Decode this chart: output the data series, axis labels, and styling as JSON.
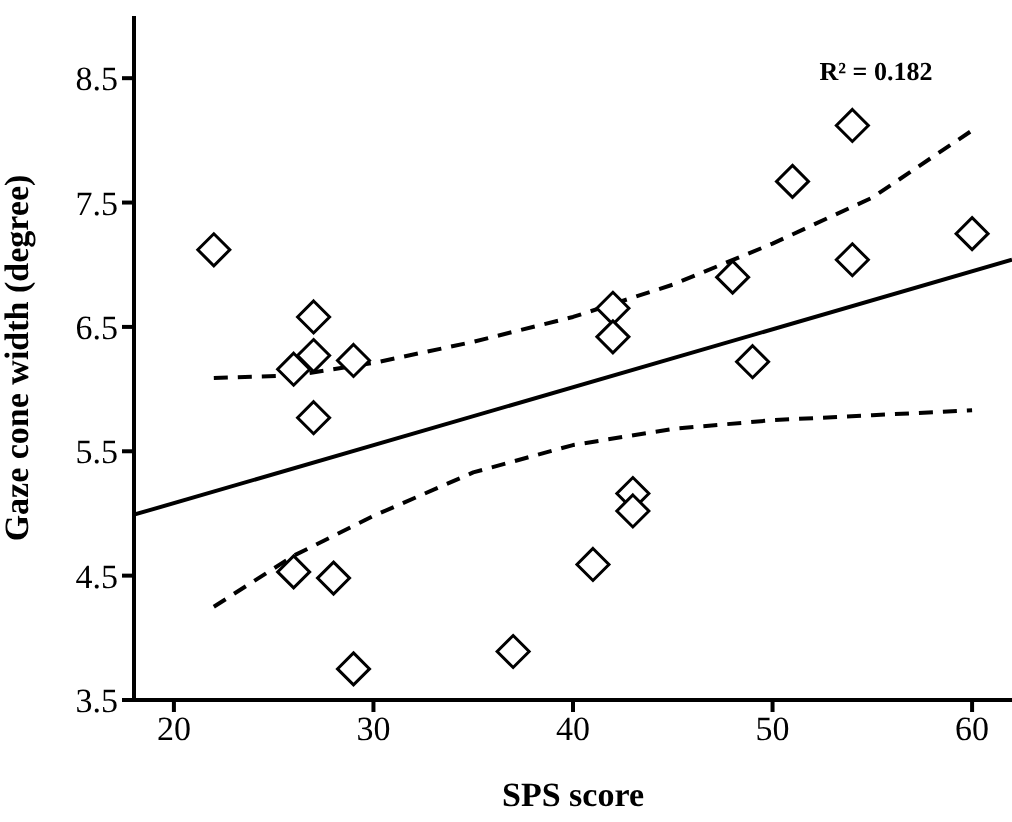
{
  "chart_data": {
    "type": "scatter",
    "xlabel": "SPS score",
    "ylabel": "Gaze cone width (degree)",
    "xlim": [
      18,
      62
    ],
    "ylim": [
      3.5,
      9.0
    ],
    "xticks": [
      20,
      30,
      40,
      50,
      60
    ],
    "yticks": [
      3.5,
      4.5,
      5.5,
      6.5,
      7.5,
      8.5
    ],
    "grid": false,
    "legend": false,
    "marker": "diamond",
    "annotations": [
      "R² = 0.182"
    ],
    "series": [
      {
        "color": "#000000",
        "x": [
          22,
          27,
          27,
          29,
          26,
          27,
          42,
          42,
          48,
          49,
          51,
          54,
          54,
          60,
          43,
          43,
          41,
          26,
          28,
          37,
          29
        ],
        "values": [
          7.12,
          6.58,
          6.27,
          6.23,
          6.16,
          5.77,
          6.65,
          6.42,
          6.9,
          6.22,
          7.67,
          8.12,
          7.04,
          7.25,
          5.16,
          5.02,
          4.59,
          4.53,
          4.48,
          3.89,
          3.75
        ]
      },
      {
        "type": "line",
        "color": "#000000",
        "line_style": "solid",
        "marker": "none",
        "x": [
          18,
          62
        ],
        "values": [
          4.99,
          7.04
        ]
      },
      {
        "type": "line",
        "color": "#000000",
        "line_style": "dashed",
        "marker": "none",
        "x": [
          22,
          26,
          30,
          35,
          40,
          45,
          50,
          55,
          60
        ],
        "values": [
          6.09,
          6.11,
          6.21,
          6.38,
          6.58,
          6.84,
          7.17,
          7.54,
          8.08
        ]
      },
      {
        "type": "line",
        "color": "#000000",
        "line_style": "dashed",
        "marker": "none",
        "x": [
          22,
          26,
          30,
          35,
          40,
          45,
          50,
          55,
          60
        ],
        "values": [
          4.25,
          4.66,
          4.98,
          5.33,
          5.55,
          5.68,
          5.75,
          5.79,
          5.83
        ]
      }
    ]
  }
}
